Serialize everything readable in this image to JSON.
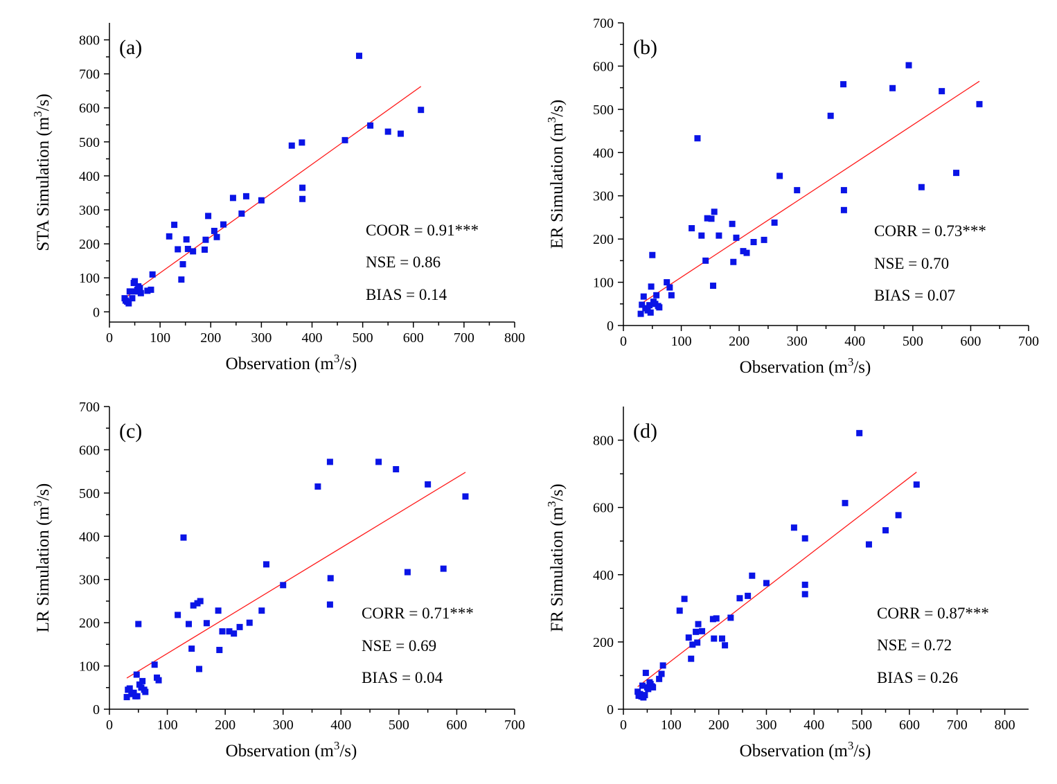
{
  "figure": {
    "panel_ids": [
      "a",
      "b",
      "c",
      "d"
    ]
  },
  "chart_data": [
    {
      "id": "a",
      "type": "scatter",
      "panel_label": "(a)",
      "xlabel": "Observation (m³/s)",
      "ylabel": "STA Simulation (m³/s)",
      "xlim": [
        0,
        800
      ],
      "ylim": [
        -30,
        850
      ],
      "xticks": [
        0,
        100,
        200,
        300,
        400,
        500,
        600,
        700,
        800
      ],
      "yticks": [
        0,
        100,
        200,
        300,
        400,
        500,
        600,
        700,
        800
      ],
      "stats": [
        "COOR = 0.91***",
        "NSE = 0.86",
        "BIAS = 0.14"
      ],
      "fit": [
        [
          30,
          40
        ],
        [
          615,
          663
        ]
      ],
      "points": [
        [
          30,
          40
        ],
        [
          32,
          33
        ],
        [
          35,
          30
        ],
        [
          38,
          25
        ],
        [
          40,
          60
        ],
        [
          45,
          40
        ],
        [
          48,
          85
        ],
        [
          50,
          90
        ],
        [
          52,
          60
        ],
        [
          55,
          65
        ],
        [
          57,
          75
        ],
        [
          60,
          70
        ],
        [
          62,
          55
        ],
        [
          75,
          62
        ],
        [
          82,
          65
        ],
        [
          85,
          110
        ],
        [
          118,
          222
        ],
        [
          128,
          256
        ],
        [
          135,
          184
        ],
        [
          142,
          95
        ],
        [
          145,
          140
        ],
        [
          152,
          213
        ],
        [
          155,
          185
        ],
        [
          165,
          178
        ],
        [
          188,
          183
        ],
        [
          190,
          212
        ],
        [
          195,
          282
        ],
        [
          207,
          238
        ],
        [
          212,
          220
        ],
        [
          225,
          257
        ],
        [
          244,
          335
        ],
        [
          261,
          289
        ],
        [
          270,
          340
        ],
        [
          300,
          328
        ],
        [
          360,
          489
        ],
        [
          380,
          498
        ],
        [
          381,
          365
        ],
        [
          381,
          332
        ],
        [
          465,
          505
        ],
        [
          493,
          753
        ],
        [
          515,
          548
        ],
        [
          550,
          530
        ],
        [
          575,
          524
        ],
        [
          615,
          594
        ]
      ],
      "colors": {
        "marker": "#0a14e6",
        "fit": "#ff1a1a"
      }
    },
    {
      "id": "b",
      "type": "scatter",
      "panel_label": "(b)",
      "xlabel": "Observation (m³/s)",
      "ylabel": "ER Simulation (m³/s)",
      "xlim": [
        0,
        700
      ],
      "ylim": [
        0,
        700
      ],
      "xticks": [
        0,
        100,
        200,
        300,
        400,
        500,
        600,
        700
      ],
      "yticks": [
        0,
        100,
        200,
        300,
        400,
        500,
        600,
        700
      ],
      "stats": [
        "CORR = 0.73***",
        "NSE = 0.70",
        "BIAS = 0.07"
      ],
      "fit": [
        [
          30,
          50
        ],
        [
          615,
          565
        ]
      ],
      "points": [
        [
          30,
          27
        ],
        [
          32,
          48
        ],
        [
          35,
          67
        ],
        [
          38,
          40
        ],
        [
          42,
          35
        ],
        [
          45,
          47
        ],
        [
          47,
          30
        ],
        [
          48,
          90
        ],
        [
          50,
          163
        ],
        [
          52,
          55
        ],
        [
          55,
          50
        ],
        [
          57,
          70
        ],
        [
          60,
          45
        ],
        [
          62,
          42
        ],
        [
          75,
          100
        ],
        [
          80,
          88
        ],
        [
          83,
          70
        ],
        [
          118,
          225
        ],
        [
          128,
          433
        ],
        [
          135,
          208
        ],
        [
          142,
          150
        ],
        [
          145,
          248
        ],
        [
          152,
          247
        ],
        [
          155,
          92
        ],
        [
          157,
          263
        ],
        [
          165,
          208
        ],
        [
          188,
          235
        ],
        [
          190,
          147
        ],
        [
          195,
          203
        ],
        [
          207,
          172
        ],
        [
          213,
          168
        ],
        [
          225,
          193
        ],
        [
          243,
          198
        ],
        [
          261,
          238
        ],
        [
          270,
          346
        ],
        [
          300,
          313
        ],
        [
          358,
          485
        ],
        [
          380,
          558
        ],
        [
          381,
          313
        ],
        [
          381,
          267
        ],
        [
          465,
          549
        ],
        [
          493,
          602
        ],
        [
          515,
          320
        ],
        [
          550,
          542
        ],
        [
          575,
          353
        ],
        [
          615,
          512
        ]
      ],
      "colors": {
        "marker": "#0a14e6",
        "fit": "#ff1a1a"
      }
    },
    {
      "id": "c",
      "type": "scatter",
      "panel_label": "(c)",
      "xlabel": "Observation (m³/s)",
      "ylabel": "LR Simulation (m³/s)",
      "xlim": [
        0,
        700
      ],
      "ylim": [
        0,
        700
      ],
      "xticks": [
        0,
        100,
        200,
        300,
        400,
        500,
        600,
        700
      ],
      "yticks": [
        0,
        100,
        200,
        300,
        400,
        500,
        600,
        700
      ],
      "stats": [
        "CORR = 0.71***",
        "NSE = 0.69",
        "BIAS = 0.04"
      ],
      "fit": [
        [
          30,
          72
        ],
        [
          615,
          548
        ]
      ],
      "points": [
        [
          30,
          28
        ],
        [
          32,
          45
        ],
        [
          35,
          48
        ],
        [
          38,
          35
        ],
        [
          42,
          38
        ],
        [
          45,
          30
        ],
        [
          47,
          80
        ],
        [
          48,
          30
        ],
        [
          50,
          197
        ],
        [
          52,
          57
        ],
        [
          55,
          50
        ],
        [
          57,
          65
        ],
        [
          60,
          45
        ],
        [
          62,
          40
        ],
        [
          78,
          103
        ],
        [
          82,
          73
        ],
        [
          85,
          67
        ],
        [
          118,
          218
        ],
        [
          128,
          397
        ],
        [
          137,
          197
        ],
        [
          142,
          140
        ],
        [
          145,
          240
        ],
        [
          152,
          245
        ],
        [
          155,
          93
        ],
        [
          157,
          250
        ],
        [
          168,
          199
        ],
        [
          188,
          228
        ],
        [
          190,
          137
        ],
        [
          195,
          180
        ],
        [
          207,
          180
        ],
        [
          215,
          175
        ],
        [
          225,
          190
        ],
        [
          242,
          200
        ],
        [
          263,
          228
        ],
        [
          271,
          335
        ],
        [
          300,
          287
        ],
        [
          360,
          515
        ],
        [
          381,
          572
        ],
        [
          382,
          303
        ],
        [
          381,
          242
        ],
        [
          465,
          572
        ],
        [
          495,
          555
        ],
        [
          515,
          317
        ],
        [
          550,
          520
        ],
        [
          577,
          325
        ],
        [
          615,
          492
        ]
      ],
      "colors": {
        "marker": "#0a14e6",
        "fit": "#ff1a1a"
      }
    },
    {
      "id": "d",
      "type": "scatter",
      "panel_label": "(d)",
      "xlabel": "Observation (m³/s)",
      "ylabel": "FR Simulation (m³/s)",
      "xlim": [
        0,
        850
      ],
      "ylim": [
        0,
        900
      ],
      "xticks": [
        0,
        100,
        200,
        300,
        400,
        500,
        600,
        700,
        800
      ],
      "yticks": [
        0,
        200,
        400,
        600,
        800
      ],
      "stats": [
        "CORR = 0.87***",
        "NSE = 0.72",
        "BIAS = 0.26"
      ],
      "fit": [
        [
          30,
          67
        ],
        [
          615,
          705
        ]
      ],
      "points": [
        [
          30,
          52
        ],
        [
          32,
          40
        ],
        [
          35,
          45
        ],
        [
          38,
          38
        ],
        [
          40,
          70
        ],
        [
          42,
          35
        ],
        [
          45,
          42
        ],
        [
          47,
          108
        ],
        [
          50,
          65
        ],
        [
          52,
          60
        ],
        [
          55,
          80
        ],
        [
          57,
          75
        ],
        [
          60,
          68
        ],
        [
          62,
          65
        ],
        [
          75,
          90
        ],
        [
          80,
          105
        ],
        [
          83,
          130
        ],
        [
          118,
          293
        ],
        [
          128,
          328
        ],
        [
          137,
          213
        ],
        [
          142,
          150
        ],
        [
          145,
          192
        ],
        [
          152,
          230
        ],
        [
          155,
          198
        ],
        [
          157,
          253
        ],
        [
          165,
          232
        ],
        [
          188,
          268
        ],
        [
          190,
          210
        ],
        [
          195,
          270
        ],
        [
          207,
          210
        ],
        [
          213,
          190
        ],
        [
          225,
          272
        ],
        [
          244,
          330
        ],
        [
          261,
          337
        ],
        [
          270,
          397
        ],
        [
          300,
          375
        ],
        [
          358,
          540
        ],
        [
          381,
          508
        ],
        [
          381,
          370
        ],
        [
          381,
          342
        ],
        [
          465,
          613
        ],
        [
          495,
          821
        ],
        [
          515,
          490
        ],
        [
          550,
          532
        ],
        [
          577,
          577
        ],
        [
          615,
          668
        ]
      ],
      "colors": {
        "marker": "#0a14e6",
        "fit": "#ff1a1a"
      }
    }
  ]
}
